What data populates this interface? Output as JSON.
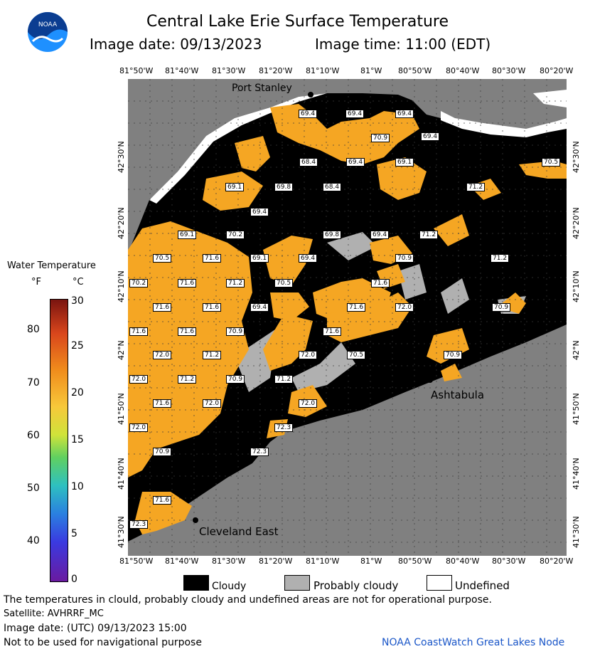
{
  "header": {
    "logo_text": "NOAA",
    "title": "Central Lake Erie Surface Temperature",
    "image_date_label": "Image date: 09/13/2023",
    "image_time_label": "Image time: 11:00 (EDT)"
  },
  "map": {
    "top_lon_labels": [
      "81°50'W",
      "81°40'W",
      "81°30'W",
      "81°20'W",
      "81°10'W",
      "81°W",
      "80°50'W",
      "80°40'W",
      "80°30'W",
      "80°20'W"
    ],
    "bottom_lon_labels": [
      "81°50'W",
      "81°40'W",
      "81°30'W",
      "81°20'W",
      "81°10'W",
      "81°W",
      "80°50'W",
      "80°40'W",
      "80°30'W",
      "80°20'W"
    ],
    "left_lat_labels": [
      "42°30'N",
      "42°20'N",
      "42°10'N",
      "42°N",
      "41°50'N",
      "41°40'N",
      "41°30'N"
    ],
    "right_lat_labels": [
      "42°30'N",
      "42°20'N",
      "42°10'N",
      "42°N",
      "41°50'N",
      "41°40'N",
      "41°30'N"
    ],
    "places": {
      "port_stanley": "Port Stanley",
      "ashtabula": "Ashtabula",
      "cleveland_east": "Cleveland East"
    },
    "temperatures": [
      "69.4",
      "69.4",
      "69.4",
      "70.9",
      "69.4",
      "68.4",
      "69.4",
      "69.1",
      "70.5",
      "69.1",
      "69.8",
      "68.4",
      "71.2",
      "69.4",
      "69.1",
      "70.2",
      "69.8",
      "69.4",
      "71.2",
      "70.5",
      "71.6",
      "69.1",
      "69.4",
      "70.9",
      "71.2",
      "70.2",
      "71.6",
      "71.2",
      "70.5",
      "71.6",
      "71.6",
      "71.6",
      "69.4",
      "71.6",
      "72.0",
      "70.9",
      "71.6",
      "71.6",
      "70.9",
      "71.6",
      "72.0",
      "71.2",
      "72.0",
      "70.5",
      "70.9",
      "72.0",
      "71.2",
      "70.9",
      "71.2",
      "71.6",
      "72.0",
      "72.0",
      "72.0",
      "72.3",
      "70.9",
      "72.3",
      "71.6",
      "72.3"
    ]
  },
  "scale": {
    "title": "Water Temperature",
    "unit_f": "°F",
    "unit_c": "°C",
    "f_ticks": [
      "80",
      "70",
      "60",
      "50",
      "40"
    ],
    "c_ticks": [
      "30",
      "25",
      "20",
      "15",
      "10",
      "5",
      "0"
    ]
  },
  "legend": {
    "cloudy": "Cloudy",
    "probably_cloudy": "Probably cloudy",
    "undefined": "Undefined"
  },
  "footer": {
    "disclaimer": "The temperatures in clould, probably cloudy and undefined areas are not for operational purpose.",
    "satellite": "Satellite: AVHRRF_MC",
    "utc_date": "Image date: (UTC) 09/13/2023  15:00",
    "navigation": "Not to be used for navigational purpose",
    "credit": "NOAA CoastWatch Great Lakes Node"
  },
  "colors": {
    "water": "#f5a623",
    "cloud": "#000000",
    "probably_cloudy": "#b0b0b0",
    "land": "#808080",
    "undefined": "#ffffff",
    "credit": "#1a56c8"
  }
}
